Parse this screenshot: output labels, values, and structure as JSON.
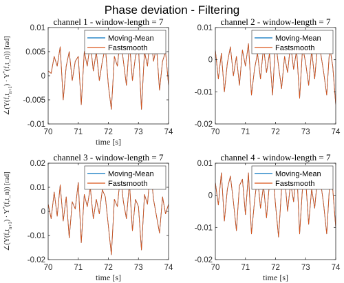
{
  "chart_data": {
    "type": "line",
    "title": "Phase deviation - Filtering",
    "colors": {
      "moving_mean": "#0072BD",
      "fastsmooth": "#D95319"
    },
    "panels": [
      {
        "title": "channel 1 - window-length = 7",
        "xlabel": "time [s]",
        "ylabel": "∠(Y(f,t_{n+1}) · Y*(f,t_n)) [rad]",
        "xlim": [
          70,
          74
        ],
        "ylim": [
          -0.01,
          0.01
        ],
        "xticks": [
          "70",
          "71",
          "72",
          "73",
          "74"
        ],
        "yticks": [
          "-0.01",
          "-0.005",
          "0",
          "0.005",
          "0.01"
        ],
        "legend": [
          "Moving-Mean",
          "Fastsmooth"
        ],
        "legend_position": "top-right",
        "x": [
          70.0,
          70.1,
          70.2,
          70.3,
          70.4,
          70.5,
          70.6,
          70.7,
          70.8,
          70.9,
          71.0,
          71.1,
          71.2,
          71.3,
          71.4,
          71.5,
          71.6,
          71.7,
          71.8,
          71.9,
          72.0,
          72.1,
          72.2,
          72.3,
          72.4,
          72.5,
          72.6,
          72.7,
          72.8,
          72.9,
          73.0,
          73.1,
          73.2,
          73.3,
          73.4,
          73.5,
          73.6,
          73.7,
          73.8,
          73.9,
          74.0
        ],
        "series": [
          {
            "name": "Moving-Mean",
            "values": [
              0.001,
              0.0005,
              0.004,
              0.002,
              0.006,
              -0.005,
              0.002,
              0.005,
              -0.001,
              0.003,
              0.004,
              -0.006,
              0.005,
              0.002,
              0.007,
              0.001,
              0.005,
              -0.001,
              0.003,
              0.006,
              -0.002,
              -0.007,
              0.004,
              0.002,
              0.008,
              0.003,
              -0.002,
              0.007,
              -0.001,
              0.004,
              0.006,
              -0.007,
              0.005,
              0.002,
              0.009,
              0.003,
              0.006,
              -0.003,
              0.003,
              0.005,
              -0.002
            ]
          },
          {
            "name": "Fastsmooth",
            "values": [
              0.001,
              0.0005,
              0.004,
              0.002,
              0.006,
              -0.005,
              0.002,
              0.005,
              -0.001,
              0.003,
              0.004,
              -0.006,
              0.005,
              0.002,
              0.007,
              0.001,
              0.005,
              -0.001,
              0.003,
              0.006,
              -0.002,
              -0.007,
              0.004,
              0.002,
              0.008,
              0.003,
              -0.002,
              0.007,
              -0.001,
              0.004,
              0.006,
              -0.007,
              0.005,
              0.002,
              0.009,
              0.003,
              0.006,
              -0.003,
              0.003,
              0.005,
              -0.002
            ]
          }
        ]
      },
      {
        "title": "channel 2 - window-length = 7",
        "xlabel": "",
        "ylabel": "",
        "xlim": [
          70,
          74
        ],
        "ylim": [
          -0.02,
          0.01
        ],
        "xticks": [
          "70",
          "71",
          "72",
          "73",
          "74"
        ],
        "yticks": [
          "-0.02",
          "-0.01",
          "0",
          "0.01"
        ],
        "legend": [
          "Moving-Mean",
          "Fastsmooth"
        ],
        "legend_position": "top-right",
        "x": [
          70.0,
          70.1,
          70.2,
          70.3,
          70.4,
          70.5,
          70.6,
          70.7,
          70.8,
          70.9,
          71.0,
          71.1,
          71.2,
          71.3,
          71.4,
          71.5,
          71.6,
          71.7,
          71.8,
          71.9,
          72.0,
          72.1,
          72.2,
          72.3,
          72.4,
          72.5,
          72.6,
          72.7,
          72.8,
          72.9,
          73.0,
          73.1,
          73.2,
          73.3,
          73.4,
          73.5,
          73.6,
          73.7,
          73.8,
          73.9,
          74.0
        ],
        "series": [
          {
            "name": "Moving-Mean",
            "values": [
              0.003,
              -0.006,
              0.002,
              -0.01,
              -0.001,
              0.004,
              -0.005,
              0.001,
              -0.008,
              0.003,
              -0.002,
              0.005,
              -0.011,
              -0.003,
              0.002,
              -0.006,
              0.004,
              -0.004,
              0.002,
              -0.011,
              0.006,
              -0.002,
              -0.009,
              0.001,
              -0.004,
              0.005,
              -0.003,
              0.003,
              -0.012,
              0.004,
              -0.001,
              -0.008,
              0.003,
              -0.006,
              0.005,
              0.002,
              -0.004,
              -0.011,
              0.004,
              -0.002,
              -0.014
            ]
          },
          {
            "name": "Fastsmooth",
            "values": [
              0.003,
              -0.006,
              0.002,
              -0.01,
              -0.001,
              0.004,
              -0.005,
              0.001,
              -0.008,
              0.003,
              -0.002,
              0.005,
              -0.011,
              -0.003,
              0.002,
              -0.006,
              0.004,
              -0.004,
              0.002,
              -0.011,
              0.006,
              -0.002,
              -0.009,
              0.001,
              -0.004,
              0.005,
              -0.003,
              0.003,
              -0.012,
              0.004,
              -0.001,
              -0.008,
              0.003,
              -0.006,
              0.005,
              0.002,
              -0.004,
              -0.011,
              0.004,
              -0.002,
              -0.014
            ]
          }
        ]
      },
      {
        "title": "channel 3 - window-length = 7",
        "xlabel": "time [s]",
        "ylabel": "∠(Y(f,t_{n+1}) · Y*(f,t_n)) [rad]",
        "xlim": [
          70,
          74
        ],
        "ylim": [
          -0.02,
          0.02
        ],
        "xticks": [
          "70",
          "71",
          "72",
          "73",
          "74"
        ],
        "yticks": [
          "-0.02",
          "-0.01",
          "0",
          "0.01",
          "0.02"
        ],
        "legend": [
          "Moving-Mean",
          "Fastsmooth"
        ],
        "legend_position": "top-right",
        "x": [
          70.0,
          70.1,
          70.2,
          70.3,
          70.4,
          70.5,
          70.6,
          70.7,
          70.8,
          70.9,
          71.0,
          71.1,
          71.2,
          71.3,
          71.4,
          71.5,
          71.6,
          71.7,
          71.8,
          71.9,
          72.0,
          72.1,
          72.2,
          72.3,
          72.4,
          72.5,
          72.6,
          72.7,
          72.8,
          72.9,
          73.0,
          73.1,
          73.2,
          73.3,
          73.4,
          73.5,
          73.6,
          73.7,
          73.8,
          73.9,
          74.0
        ],
        "series": [
          {
            "name": "Moving-Mean",
            "values": [
              0.003,
              -0.003,
              0.008,
              -0.002,
              0.011,
              -0.004,
              0.006,
              -0.011,
              0.004,
              0.001,
              0.012,
              -0.013,
              0.007,
              0.002,
              0.01,
              -0.003,
              0.005,
              -0.001,
              0.009,
              0.006,
              -0.006,
              -0.018,
              0.005,
              0.002,
              0.015,
              0.004,
              -0.003,
              0.012,
              -0.008,
              0.005,
              0.002,
              -0.016,
              0.007,
              0.003,
              0.018,
              0.005,
              -0.002,
              -0.009,
              0.006,
              -0.001,
              0.003
            ]
          },
          {
            "name": "Fastsmooth",
            "values": [
              0.003,
              -0.003,
              0.008,
              -0.002,
              0.011,
              -0.004,
              0.006,
              -0.011,
              0.004,
              0.001,
              0.012,
              -0.013,
              0.007,
              0.002,
              0.01,
              -0.003,
              0.005,
              -0.001,
              0.009,
              0.006,
              -0.006,
              -0.018,
              0.005,
              0.002,
              0.015,
              0.004,
              -0.003,
              0.012,
              -0.008,
              0.005,
              0.002,
              -0.016,
              0.007,
              0.003,
              0.018,
              0.005,
              -0.002,
              -0.009,
              0.006,
              -0.001,
              0.003
            ]
          }
        ]
      },
      {
        "title": "channel 4 - window-length = 7",
        "xlabel": "time [s]",
        "ylabel": "",
        "xlim": [
          70,
          74
        ],
        "ylim": [
          -0.02,
          0.01
        ],
        "xticks": [
          "70",
          "71",
          "72",
          "73",
          "74"
        ],
        "yticks": [
          "-0.02",
          "-0.01",
          "0",
          "0.01"
        ],
        "legend": [
          "Moving-Mean",
          "Fastsmooth"
        ],
        "legend_position": "top-right",
        "x": [
          70.0,
          70.1,
          70.2,
          70.3,
          70.4,
          70.5,
          70.6,
          70.7,
          70.8,
          70.9,
          71.0,
          71.1,
          71.2,
          71.3,
          71.4,
          71.5,
          71.6,
          71.7,
          71.8,
          71.9,
          72.0,
          72.1,
          72.2,
          72.3,
          72.4,
          72.5,
          72.6,
          72.7,
          72.8,
          72.9,
          73.0,
          73.1,
          73.2,
          73.3,
          73.4,
          73.5,
          73.6,
          73.7,
          73.8,
          73.9,
          74.0
        ],
        "series": [
          {
            "name": "Moving-Mean",
            "values": [
              0.004,
              -0.003,
              0.007,
              -0.008,
              0.002,
              0.006,
              -0.002,
              -0.011,
              0.003,
              0.005,
              -0.006,
              0.007,
              -0.012,
              -0.002,
              0.006,
              -0.004,
              0.003,
              -0.007,
              0.004,
              0.008,
              -0.003,
              -0.013,
              0.002,
              0.006,
              -0.005,
              0.004,
              -0.002,
              0.009,
              -0.012,
              0.003,
              0.005,
              -0.009,
              0.002,
              -0.004,
              0.006,
              0.004,
              -0.003,
              -0.012,
              0.004,
              0.002,
              -0.01
            ]
          },
          {
            "name": "Fastsmooth",
            "values": [
              0.004,
              -0.003,
              0.007,
              -0.008,
              0.002,
              0.006,
              -0.002,
              -0.011,
              0.003,
              0.005,
              -0.006,
              0.007,
              -0.012,
              -0.002,
              0.006,
              -0.004,
              0.003,
              -0.007,
              0.004,
              0.008,
              -0.003,
              -0.013,
              0.002,
              0.006,
              -0.005,
              0.004,
              -0.002,
              0.009,
              -0.012,
              0.003,
              0.005,
              -0.009,
              0.002,
              -0.004,
              0.006,
              0.004,
              -0.003,
              -0.012,
              0.004,
              0.002,
              -0.01
            ]
          }
        ]
      }
    ]
  }
}
